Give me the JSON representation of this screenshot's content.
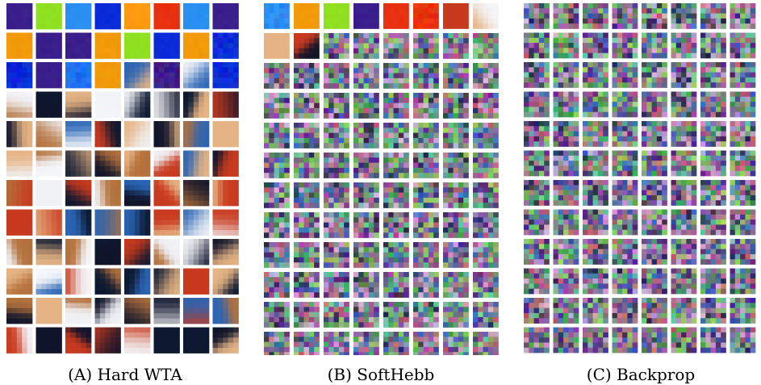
{
  "figure": {
    "panels": [
      {
        "id": "A",
        "caption": "(A) Hard WTA",
        "columns": 8,
        "rows": 12,
        "kernel": 5,
        "style": "smooth-natural"
      },
      {
        "id": "B",
        "caption": "(B) SoftHebb",
        "columns": 8,
        "rows": 12,
        "kernel": 5,
        "style": "mixed",
        "smooth_filters": 10
      },
      {
        "id": "C",
        "caption": "(C) Backprop",
        "columns": 8,
        "rows": 12,
        "kernel": 5,
        "style": "noise"
      }
    ],
    "palette": {
      "background": "#ffffff",
      "solid_colors": [
        "#1e6ef0",
        "#2a8ff2",
        "#ff9a10",
        "#e83010",
        "#8fe020",
        "#3a1e8c",
        "#0a2bd8",
        "#f29a0a"
      ],
      "natural_colors": [
        "#10142a",
        "#f0f2f6",
        "#e6b484",
        "#2a64b4",
        "#b4713c",
        "#0c1830",
        "#c83a1e",
        "#f4f6fa"
      ],
      "noise_colors": [
        "#7a7a8c",
        "#4e9c5a",
        "#9a5aa0",
        "#4a6ab4",
        "#b46a7a",
        "#6ab49a",
        "#c8a0c8",
        "#3a3a5a",
        "#8cc06a",
        "#5a3a8c"
      ]
    }
  }
}
